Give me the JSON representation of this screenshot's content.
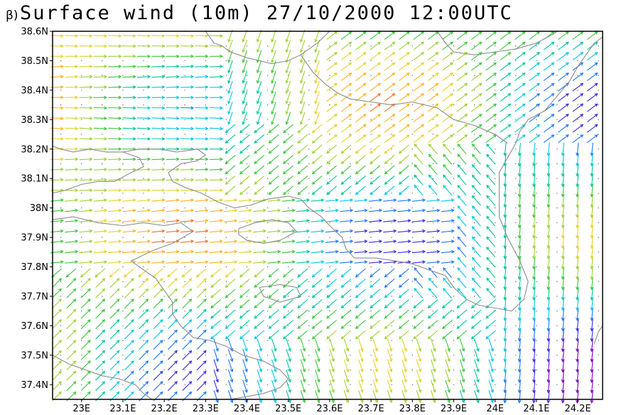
{
  "panel_label": "β)",
  "title": "Surface wind (10m) 27/10/2000 12:00UTC",
  "colors": {
    "coastline": "#8c8c8c",
    "frame": "#000000",
    "grid_dots": "#6a6a6a"
  },
  "chart_data": {
    "type": "vector-field",
    "title": "Surface wind (10m) 27/10/2000 12:00UTC",
    "panel_label": "β)",
    "xlim": [
      22.93,
      24.26
    ],
    "ylim": [
      37.35,
      38.6
    ],
    "x_ticks": [
      23.0,
      23.1,
      23.2,
      23.3,
      23.4,
      23.5,
      23.6,
      23.7,
      23.8,
      23.9,
      24.0,
      24.1,
      24.2
    ],
    "x_tick_labels": [
      "23E",
      "23.1E",
      "23.2E",
      "23.3E",
      "23.4E",
      "23.5E",
      "23.6E",
      "23.7E",
      "23.8E",
      "23.9E",
      "24E",
      "24.1E",
      "24.2E"
    ],
    "y_ticks": [
      37.4,
      37.5,
      37.6,
      37.7,
      37.8,
      37.9,
      38.0,
      38.1,
      38.2,
      38.3,
      38.4,
      38.5,
      38.6
    ],
    "y_tick_labels": [
      "37.4N",
      "37.5N",
      "37.6N",
      "37.7N",
      "37.8N",
      "37.9N",
      "38N",
      "38.1N",
      "38.2N",
      "38.3N",
      "38.4N",
      "38.5N",
      "38.6N"
    ],
    "color_scale": [
      "#7a00c8",
      "#3a2ee8",
      "#1e78ff",
      "#00c8e6",
      "#00c896",
      "#3cc83c",
      "#a0d232",
      "#e6d228",
      "#ffb41e",
      "#ff6e1e",
      "#e61e1e"
    ],
    "grid_step_deg": 0.05,
    "coastlines": [
      [
        [
          22.93,
          38.05
        ],
        [
          22.96,
          38.06
        ],
        [
          23.0,
          38.08
        ],
        [
          23.04,
          38.09
        ],
        [
          23.08,
          38.09
        ],
        [
          23.12,
          38.12
        ],
        [
          23.15,
          38.14
        ],
        [
          23.14,
          38.17
        ],
        [
          23.1,
          38.19
        ],
        [
          23.06,
          38.19
        ],
        [
          23.02,
          38.2
        ],
        [
          22.98,
          38.19
        ],
        [
          22.95,
          38.2
        ],
        [
          22.93,
          38.21
        ]
      ],
      [
        [
          23.1,
          38.19
        ],
        [
          23.14,
          38.2
        ],
        [
          23.19,
          38.2
        ],
        [
          23.23,
          38.19
        ],
        [
          23.28,
          38.2
        ],
        [
          23.3,
          38.18
        ],
        [
          23.28,
          38.16
        ],
        [
          23.24,
          38.15
        ],
        [
          23.21,
          38.12
        ],
        [
          23.22,
          38.09
        ],
        [
          23.25,
          38.07
        ],
        [
          23.29,
          38.05
        ],
        [
          23.33,
          38.02
        ],
        [
          23.37,
          38.0
        ],
        [
          23.41,
          38.01
        ],
        [
          23.45,
          38.03
        ],
        [
          23.5,
          38.04
        ],
        [
          23.53,
          38.03
        ],
        [
          23.55,
          38.0
        ],
        [
          23.58,
          37.97
        ],
        [
          23.6,
          37.94
        ],
        [
          23.63,
          37.9
        ],
        [
          23.64,
          37.86
        ],
        [
          23.66,
          37.83
        ],
        [
          23.71,
          37.83
        ],
        [
          23.76,
          37.82
        ],
        [
          23.8,
          37.81
        ],
        [
          23.84,
          37.79
        ],
        [
          23.88,
          37.77
        ],
        [
          23.9,
          37.73
        ],
        [
          23.93,
          37.69
        ],
        [
          23.96,
          37.67
        ],
        [
          24.0,
          37.66
        ],
        [
          24.04,
          37.65
        ],
        [
          24.07,
          37.69
        ],
        [
          24.08,
          37.75
        ],
        [
          24.06,
          37.82
        ],
        [
          24.03,
          37.9
        ],
        [
          24.01,
          37.97
        ],
        [
          24.01,
          38.05
        ],
        [
          24.01,
          38.12
        ],
        [
          24.03,
          38.17
        ],
        [
          24.05,
          38.22
        ],
        [
          24.06,
          38.26
        ],
        [
          24.08,
          38.3
        ],
        [
          24.12,
          38.33
        ],
        [
          24.15,
          38.38
        ],
        [
          24.18,
          38.43
        ],
        [
          24.2,
          38.48
        ],
        [
          24.22,
          38.52
        ],
        [
          24.24,
          38.56
        ],
        [
          24.26,
          38.58
        ]
      ],
      [
        [
          23.6,
          38.6
        ],
        [
          23.57,
          38.56
        ],
        [
          23.53,
          38.52
        ],
        [
          23.5,
          38.5
        ],
        [
          23.46,
          38.49
        ],
        [
          23.43,
          38.5
        ],
        [
          23.4,
          38.51
        ],
        [
          23.36,
          38.53
        ],
        [
          23.34,
          38.55
        ],
        [
          23.32,
          38.56
        ],
        [
          23.3,
          38.6
        ]
      ],
      [
        [
          23.53,
          38.52
        ],
        [
          23.56,
          38.46
        ],
        [
          23.59,
          38.42
        ],
        [
          23.62,
          38.39
        ],
        [
          23.65,
          38.37
        ],
        [
          23.7,
          38.36
        ],
        [
          23.75,
          38.35
        ],
        [
          23.8,
          38.36
        ],
        [
          23.86,
          38.34
        ],
        [
          23.9,
          38.3
        ],
        [
          23.95,
          38.28
        ],
        [
          24.0,
          38.25
        ],
        [
          24.03,
          38.22
        ]
      ],
      [
        [
          23.86,
          38.6
        ],
        [
          23.88,
          38.56
        ],
        [
          23.9,
          38.53
        ],
        [
          23.95,
          38.52
        ],
        [
          24.0,
          38.53
        ],
        [
          24.05,
          38.54
        ],
        [
          24.1,
          38.56
        ],
        [
          24.14,
          38.59
        ],
        [
          24.15,
          38.6
        ]
      ],
      [
        [
          22.93,
          37.96
        ],
        [
          22.98,
          37.97
        ],
        [
          23.04,
          37.95
        ],
        [
          23.1,
          37.94
        ],
        [
          23.15,
          37.95
        ],
        [
          23.2,
          37.94
        ],
        [
          23.24,
          37.95
        ],
        [
          23.27,
          37.92
        ],
        [
          23.22,
          37.88
        ],
        [
          23.18,
          37.86
        ],
        [
          23.15,
          37.84
        ],
        [
          23.12,
          37.82
        ],
        [
          23.15,
          37.79
        ],
        [
          23.18,
          37.76
        ],
        [
          23.2,
          37.72
        ],
        [
          23.22,
          37.68
        ],
        [
          23.22,
          37.64
        ],
        [
          23.24,
          37.6
        ],
        [
          23.27,
          37.56
        ],
        [
          23.31,
          37.55
        ],
        [
          23.35,
          37.53
        ],
        [
          23.39,
          37.5
        ],
        [
          23.44,
          37.48
        ],
        [
          23.48,
          37.45
        ],
        [
          23.5,
          37.42
        ],
        [
          23.48,
          37.39
        ],
        [
          23.44,
          37.37
        ],
        [
          23.4,
          37.36
        ],
        [
          23.36,
          37.35
        ]
      ],
      [
        [
          22.93,
          37.5
        ],
        [
          22.97,
          37.47
        ],
        [
          23.01,
          37.45
        ],
        [
          23.05,
          37.43
        ],
        [
          23.09,
          37.42
        ],
        [
          23.13,
          37.4
        ],
        [
          23.15,
          37.37
        ],
        [
          23.17,
          37.35
        ]
      ],
      [
        [
          23.38,
          37.93
        ],
        [
          23.42,
          37.95
        ],
        [
          23.46,
          37.96
        ],
        [
          23.5,
          37.95
        ],
        [
          23.52,
          37.92
        ],
        [
          23.48,
          37.89
        ],
        [
          23.44,
          37.88
        ],
        [
          23.4,
          37.89
        ],
        [
          23.38,
          37.91
        ],
        [
          23.38,
          37.93
        ]
      ],
      [
        [
          23.43,
          37.73
        ],
        [
          23.48,
          37.74
        ],
        [
          23.52,
          37.73
        ],
        [
          23.53,
          37.7
        ],
        [
          23.48,
          37.68
        ],
        [
          23.44,
          37.7
        ],
        [
          23.43,
          37.73
        ]
      ],
      [
        [
          24.24,
          37.54
        ],
        [
          24.25,
          37.58
        ],
        [
          24.26,
          37.6
        ]
      ]
    ]
  }
}
